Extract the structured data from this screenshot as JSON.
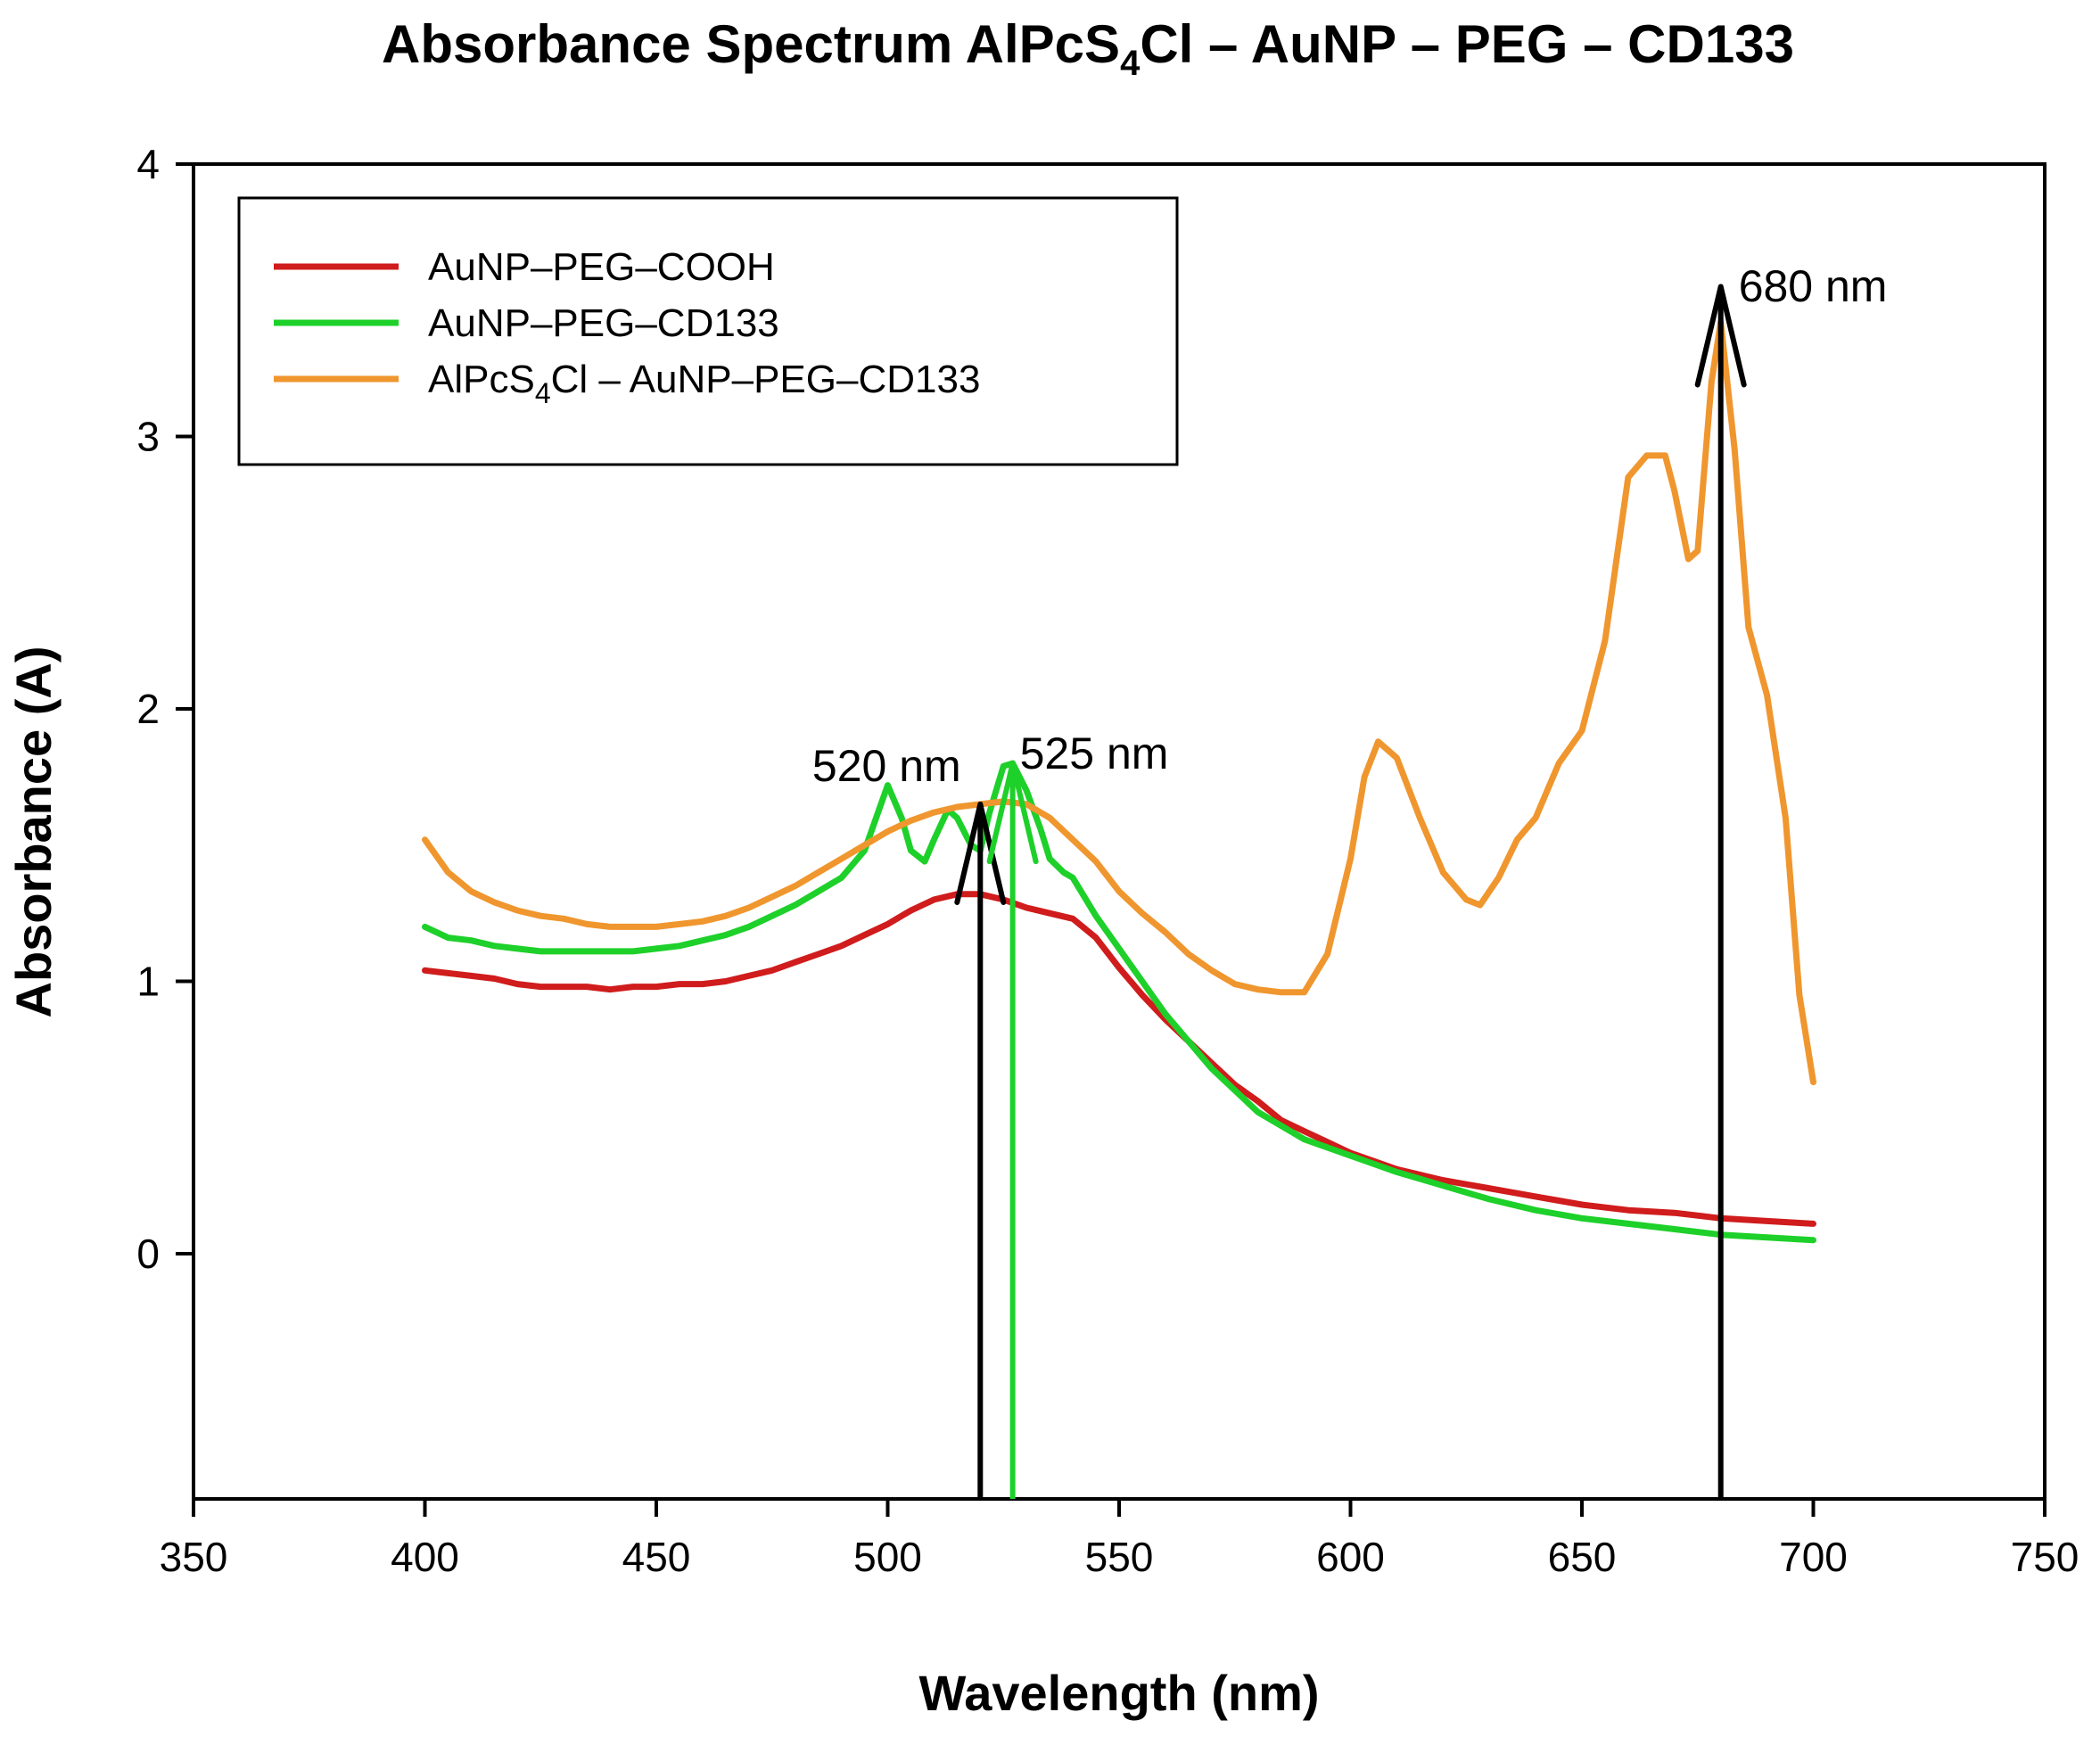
{
  "chart_data": {
    "type": "line",
    "title": {
      "pre": "Absorbance Spectrum AlPcS",
      "sub": "4",
      "post": "Cl – AuNP – PEG – CD133"
    },
    "xlabel": "Wavelength (nm)",
    "ylabel": "Absorbance (A)",
    "xlim": [
      350,
      750
    ],
    "ylim": [
      -0.9,
      4
    ],
    "xticks": [
      350,
      400,
      450,
      500,
      550,
      600,
      650,
      700,
      750
    ],
    "yticks": [
      0,
      1,
      2,
      3,
      4
    ],
    "legend_position": "top-left",
    "series": [
      {
        "name": "AuNP–PEG–COOH",
        "label": {
          "pre": "AuNP–PEG–COOH",
          "sub": "",
          "post": ""
        },
        "color": "#d01c1c",
        "x": [
          400,
          405,
          410,
          415,
          420,
          425,
          430,
          435,
          440,
          445,
          450,
          455,
          460,
          465,
          470,
          475,
          480,
          485,
          490,
          495,
          500,
          505,
          510,
          515,
          520,
          525,
          530,
          535,
          540,
          545,
          550,
          555,
          560,
          565,
          570,
          575,
          580,
          585,
          590,
          595,
          600,
          610,
          620,
          630,
          640,
          650,
          660,
          670,
          680,
          690,
          700
        ],
        "y": [
          1.04,
          1.03,
          1.02,
          1.01,
          0.99,
          0.98,
          0.98,
          0.98,
          0.97,
          0.98,
          0.98,
          0.99,
          0.99,
          1.0,
          1.02,
          1.04,
          1.07,
          1.1,
          1.13,
          1.17,
          1.21,
          1.26,
          1.3,
          1.32,
          1.32,
          1.3,
          1.27,
          1.25,
          1.23,
          1.16,
          1.05,
          0.95,
          0.86,
          0.78,
          0.7,
          0.62,
          0.56,
          0.49,
          0.45,
          0.41,
          0.37,
          0.31,
          0.27,
          0.24,
          0.21,
          0.18,
          0.16,
          0.15,
          0.13,
          0.12,
          0.11
        ]
      },
      {
        "name": "AuNP–PEG–CD133",
        "label": {
          "pre": "AuNP–PEG–CD133",
          "sub": "",
          "post": ""
        },
        "color": "#1ed02a",
        "x": [
          400,
          405,
          410,
          415,
          420,
          425,
          430,
          435,
          440,
          445,
          450,
          455,
          460,
          465,
          470,
          475,
          480,
          485,
          490,
          495,
          500,
          503,
          505,
          508,
          510,
          513,
          515,
          518,
          520,
          522,
          525,
          527,
          530,
          533,
          535,
          538,
          540,
          545,
          550,
          555,
          560,
          570,
          580,
          590,
          600,
          610,
          620,
          630,
          640,
          650,
          660,
          670,
          680,
          690,
          700
        ],
        "y": [
          1.2,
          1.16,
          1.15,
          1.13,
          1.12,
          1.11,
          1.11,
          1.11,
          1.11,
          1.11,
          1.12,
          1.13,
          1.15,
          1.17,
          1.2,
          1.24,
          1.28,
          1.33,
          1.38,
          1.48,
          1.72,
          1.6,
          1.48,
          1.44,
          1.52,
          1.63,
          1.6,
          1.5,
          1.48,
          1.62,
          1.79,
          1.8,
          1.7,
          1.56,
          1.45,
          1.4,
          1.38,
          1.24,
          1.12,
          1.0,
          0.88,
          0.68,
          0.52,
          0.42,
          0.36,
          0.3,
          0.25,
          0.2,
          0.16,
          0.13,
          0.11,
          0.09,
          0.07,
          0.06,
          0.05
        ]
      },
      {
        "name": "AlPcS4Cl – AuNP–PEG–CD133",
        "label": {
          "pre": "AlPcS",
          "sub": "4",
          "post": "Cl – AuNP–PEG–CD133"
        },
        "color": "#f0962e",
        "x": [
          400,
          405,
          410,
          415,
          420,
          425,
          430,
          435,
          440,
          445,
          450,
          455,
          460,
          465,
          470,
          475,
          480,
          485,
          490,
          495,
          500,
          505,
          510,
          515,
          520,
          525,
          530,
          535,
          540,
          545,
          550,
          555,
          560,
          565,
          570,
          575,
          580,
          585,
          590,
          595,
          600,
          603,
          606,
          610,
          615,
          620,
          625,
          628,
          632,
          636,
          640,
          645,
          650,
          655,
          660,
          664,
          668,
          670,
          673,
          675,
          678,
          680,
          683,
          686,
          690,
          694,
          697,
          700
        ],
        "y": [
          1.52,
          1.4,
          1.33,
          1.29,
          1.26,
          1.24,
          1.23,
          1.21,
          1.2,
          1.2,
          1.2,
          1.21,
          1.22,
          1.24,
          1.27,
          1.31,
          1.35,
          1.4,
          1.45,
          1.5,
          1.55,
          1.59,
          1.62,
          1.64,
          1.65,
          1.66,
          1.65,
          1.6,
          1.52,
          1.44,
          1.33,
          1.25,
          1.18,
          1.1,
          1.04,
          0.99,
          0.97,
          0.96,
          0.96,
          1.1,
          1.45,
          1.75,
          1.88,
          1.82,
          1.6,
          1.4,
          1.3,
          1.28,
          1.38,
          1.52,
          1.6,
          1.8,
          1.92,
          2.25,
          2.85,
          2.93,
          2.93,
          2.8,
          2.55,
          2.58,
          3.2,
          3.42,
          2.95,
          2.3,
          2.05,
          1.6,
          0.95,
          0.63
        ]
      }
    ],
    "annotations": [
      {
        "text": "520 nm",
        "x": 520,
        "y_base": -0.9,
        "y_tip": 1.65,
        "color": "#000000"
      },
      {
        "text": "525 nm",
        "x": 527,
        "y_base": -0.9,
        "y_tip": 1.8,
        "color": "#1ed02a"
      },
      {
        "text": "680 nm",
        "x": 680,
        "y_base": -0.9,
        "y_tip": 3.55,
        "color": "#000000"
      }
    ]
  }
}
